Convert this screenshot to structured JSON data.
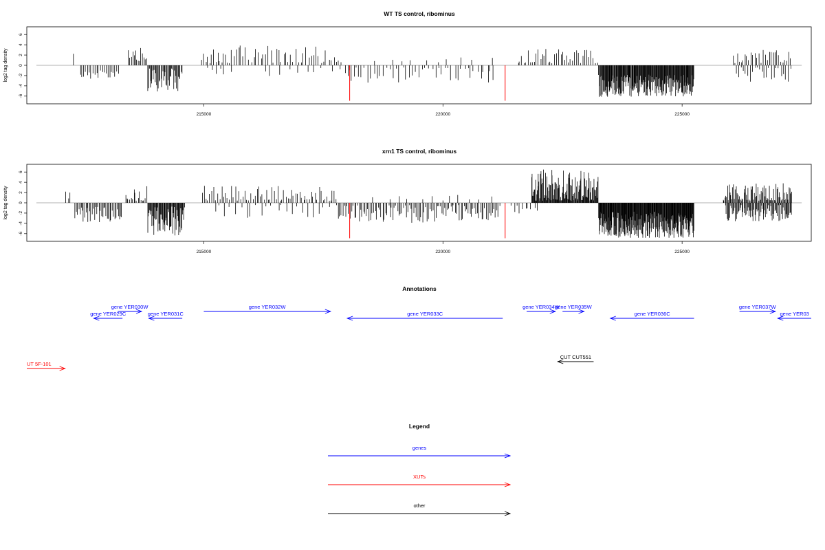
{
  "chart_data": [
    {
      "type": "bar",
      "title": "WT TS control, ribominus",
      "ylabel": "log2 tag density",
      "xlim": [
        211300,
        227700
      ],
      "ylim": [
        -7.5,
        7.5
      ],
      "xticks": [
        215000,
        220000,
        225000
      ],
      "yticks": [
        6,
        4,
        2,
        0,
        -2,
        -4,
        -6
      ],
      "baseline": 0,
      "highlight_color": "#ff0000",
      "bar_color": "#000000",
      "segments": [
        {
          "start": 212250,
          "end": 212300,
          "n": 1,
          "base": 2.4,
          "amp": 0.3,
          "sign": 1
        },
        {
          "start": 212400,
          "end": 213250,
          "n": 22,
          "base": -1.9,
          "amp": 0.9,
          "sign": -1
        },
        {
          "start": 213420,
          "end": 213820,
          "n": 14,
          "base": 1.9,
          "amp": 1.5,
          "sign": 1
        },
        {
          "start": 213820,
          "end": 214550,
          "n": 42,
          "base": -2.8,
          "amp": 2.3,
          "sign": -1
        },
        {
          "start": 214950,
          "end": 215600,
          "n": 16,
          "base": 1.5,
          "amp": 1.6,
          "sign": 1
        },
        {
          "start": 215000,
          "end": 215600,
          "n": 6,
          "base": -1.0,
          "amp": 0.8,
          "sign": -1
        },
        {
          "start": 215600,
          "end": 217900,
          "n": 44,
          "base": 1.6,
          "amp": 2.3,
          "sign": 1
        },
        {
          "start": 216200,
          "end": 217900,
          "n": 10,
          "base": -1.2,
          "amp": 1.0,
          "sign": -1
        },
        {
          "start": 217950,
          "end": 218250,
          "n": 7,
          "base": -1.8,
          "amp": 1.4,
          "sign": -1
        },
        {
          "start": 218250,
          "end": 221100,
          "n": 42,
          "base": -1.6,
          "amp": 1.8,
          "sign": -1
        },
        {
          "start": 218500,
          "end": 221100,
          "n": 10,
          "base": 0.9,
          "amp": 0.8,
          "sign": 1
        },
        {
          "start": 221550,
          "end": 223250,
          "n": 40,
          "base": 1.6,
          "amp": 2.1,
          "sign": 1
        },
        {
          "start": 223250,
          "end": 225250,
          "n": 190,
          "base": -4.0,
          "amp": 2.2,
          "sign": -1
        },
        {
          "start": 226050,
          "end": 227300,
          "n": 30,
          "base": 1.3,
          "amp": 1.7,
          "sign": 1
        },
        {
          "start": 226100,
          "end": 227300,
          "n": 24,
          "base": -1.6,
          "amp": 1.6,
          "sign": -1
        }
      ],
      "highlights": [
        {
          "x": 218050,
          "y": -6.9
        },
        {
          "x": 221300,
          "y": -6.9
        }
      ]
    },
    {
      "type": "bar",
      "title": "xrn1 TS control, ribominus",
      "ylabel": "log2 tag density",
      "xlim": [
        211300,
        227700
      ],
      "ylim": [
        -7.5,
        7.5
      ],
      "xticks": [
        215000,
        220000,
        225000
      ],
      "yticks": [
        6,
        4,
        2,
        0,
        -2,
        -4,
        -6
      ],
      "baseline": 0,
      "highlight_color": "#ff0000",
      "bar_color": "#000000",
      "segments": [
        {
          "start": 212100,
          "end": 212250,
          "n": 3,
          "base": 1.5,
          "amp": 0.7,
          "sign": 1
        },
        {
          "start": 212300,
          "end": 213300,
          "n": 40,
          "base": -2.2,
          "amp": 1.6,
          "sign": -1
        },
        {
          "start": 213350,
          "end": 213820,
          "n": 16,
          "base": 1.4,
          "amp": 2.0,
          "sign": 1
        },
        {
          "start": 213820,
          "end": 214600,
          "n": 60,
          "base": -3.6,
          "amp": 2.9,
          "sign": -1
        },
        {
          "start": 214950,
          "end": 217800,
          "n": 70,
          "base": 1.3,
          "amp": 2.0,
          "sign": 1
        },
        {
          "start": 215200,
          "end": 217800,
          "n": 24,
          "base": -1.2,
          "amp": 2.0,
          "sign": -1
        },
        {
          "start": 217800,
          "end": 221200,
          "n": 110,
          "base": -2.0,
          "amp": 2.0,
          "sign": -1
        },
        {
          "start": 218500,
          "end": 221200,
          "n": 12,
          "base": 0.8,
          "amp": 0.8,
          "sign": 1
        },
        {
          "start": 221400,
          "end": 222000,
          "n": 10,
          "base": -1.4,
          "amp": 1.2,
          "sign": -1
        },
        {
          "start": 221850,
          "end": 223250,
          "n": 130,
          "base": 2.5,
          "amp": 4.0,
          "sign": 1
        },
        {
          "start": 223250,
          "end": 225250,
          "n": 230,
          "base": -4.4,
          "amp": 2.7,
          "sign": -1
        },
        {
          "start": 225850,
          "end": 227300,
          "n": 80,
          "base": 1.6,
          "amp": 2.2,
          "sign": 1
        },
        {
          "start": 225900,
          "end": 227300,
          "n": 80,
          "base": -2.0,
          "amp": 1.6,
          "sign": -1
        }
      ],
      "highlights": [
        {
          "x": 218050,
          "y": -6.9
        },
        {
          "x": 221300,
          "y": -6.9
        }
      ]
    }
  ],
  "annotations": {
    "title": "Annotations",
    "features": [
      {
        "label": "gene YER029C",
        "start": 213300,
        "end": 212700,
        "row": 2,
        "color": "#0000ff"
      },
      {
        "label": "gene YER030W",
        "start": 213200,
        "end": 213700,
        "row": 1,
        "color": "#0000ff"
      },
      {
        "label": "gene YER031C",
        "start": 214550,
        "end": 213850,
        "row": 2,
        "color": "#0000ff"
      },
      {
        "label": "gene YER032W",
        "start": 215000,
        "end": 217650,
        "row": 1,
        "color": "#0000ff"
      },
      {
        "label": "gene YER033C",
        "start": 221250,
        "end": 218000,
        "row": 2,
        "color": "#0000ff"
      },
      {
        "label": "gene YER034W",
        "start": 221750,
        "end": 222350,
        "row": 1,
        "color": "#0000ff"
      },
      {
        "label": "gene YER035W",
        "start": 222500,
        "end": 222950,
        "row": 1,
        "color": "#0000ff"
      },
      {
        "label": "gene YER036C",
        "start": 225250,
        "end": 223500,
        "row": 2,
        "color": "#0000ff"
      },
      {
        "label": "gene YER037W",
        "start": 226200,
        "end": 226950,
        "row": 1,
        "color": "#0000ff"
      },
      {
        "label": "gene YER03",
        "start": 227700,
        "end": 227000,
        "row": 2,
        "color": "#0000ff"
      },
      {
        "label": "CUT CUT551",
        "start": 223150,
        "end": 222400,
        "row": 3,
        "color": "#000000"
      },
      {
        "label": "UT 5F-101",
        "start": 211300,
        "end": 212100,
        "row": 4,
        "color": "#ff0000"
      }
    ]
  },
  "legend": {
    "title": "Legend",
    "items": [
      {
        "label": "genes",
        "color": "#0000ff"
      },
      {
        "label": "XUTs",
        "color": "#ff0000"
      },
      {
        "label": "other",
        "color": "#000000"
      }
    ]
  }
}
